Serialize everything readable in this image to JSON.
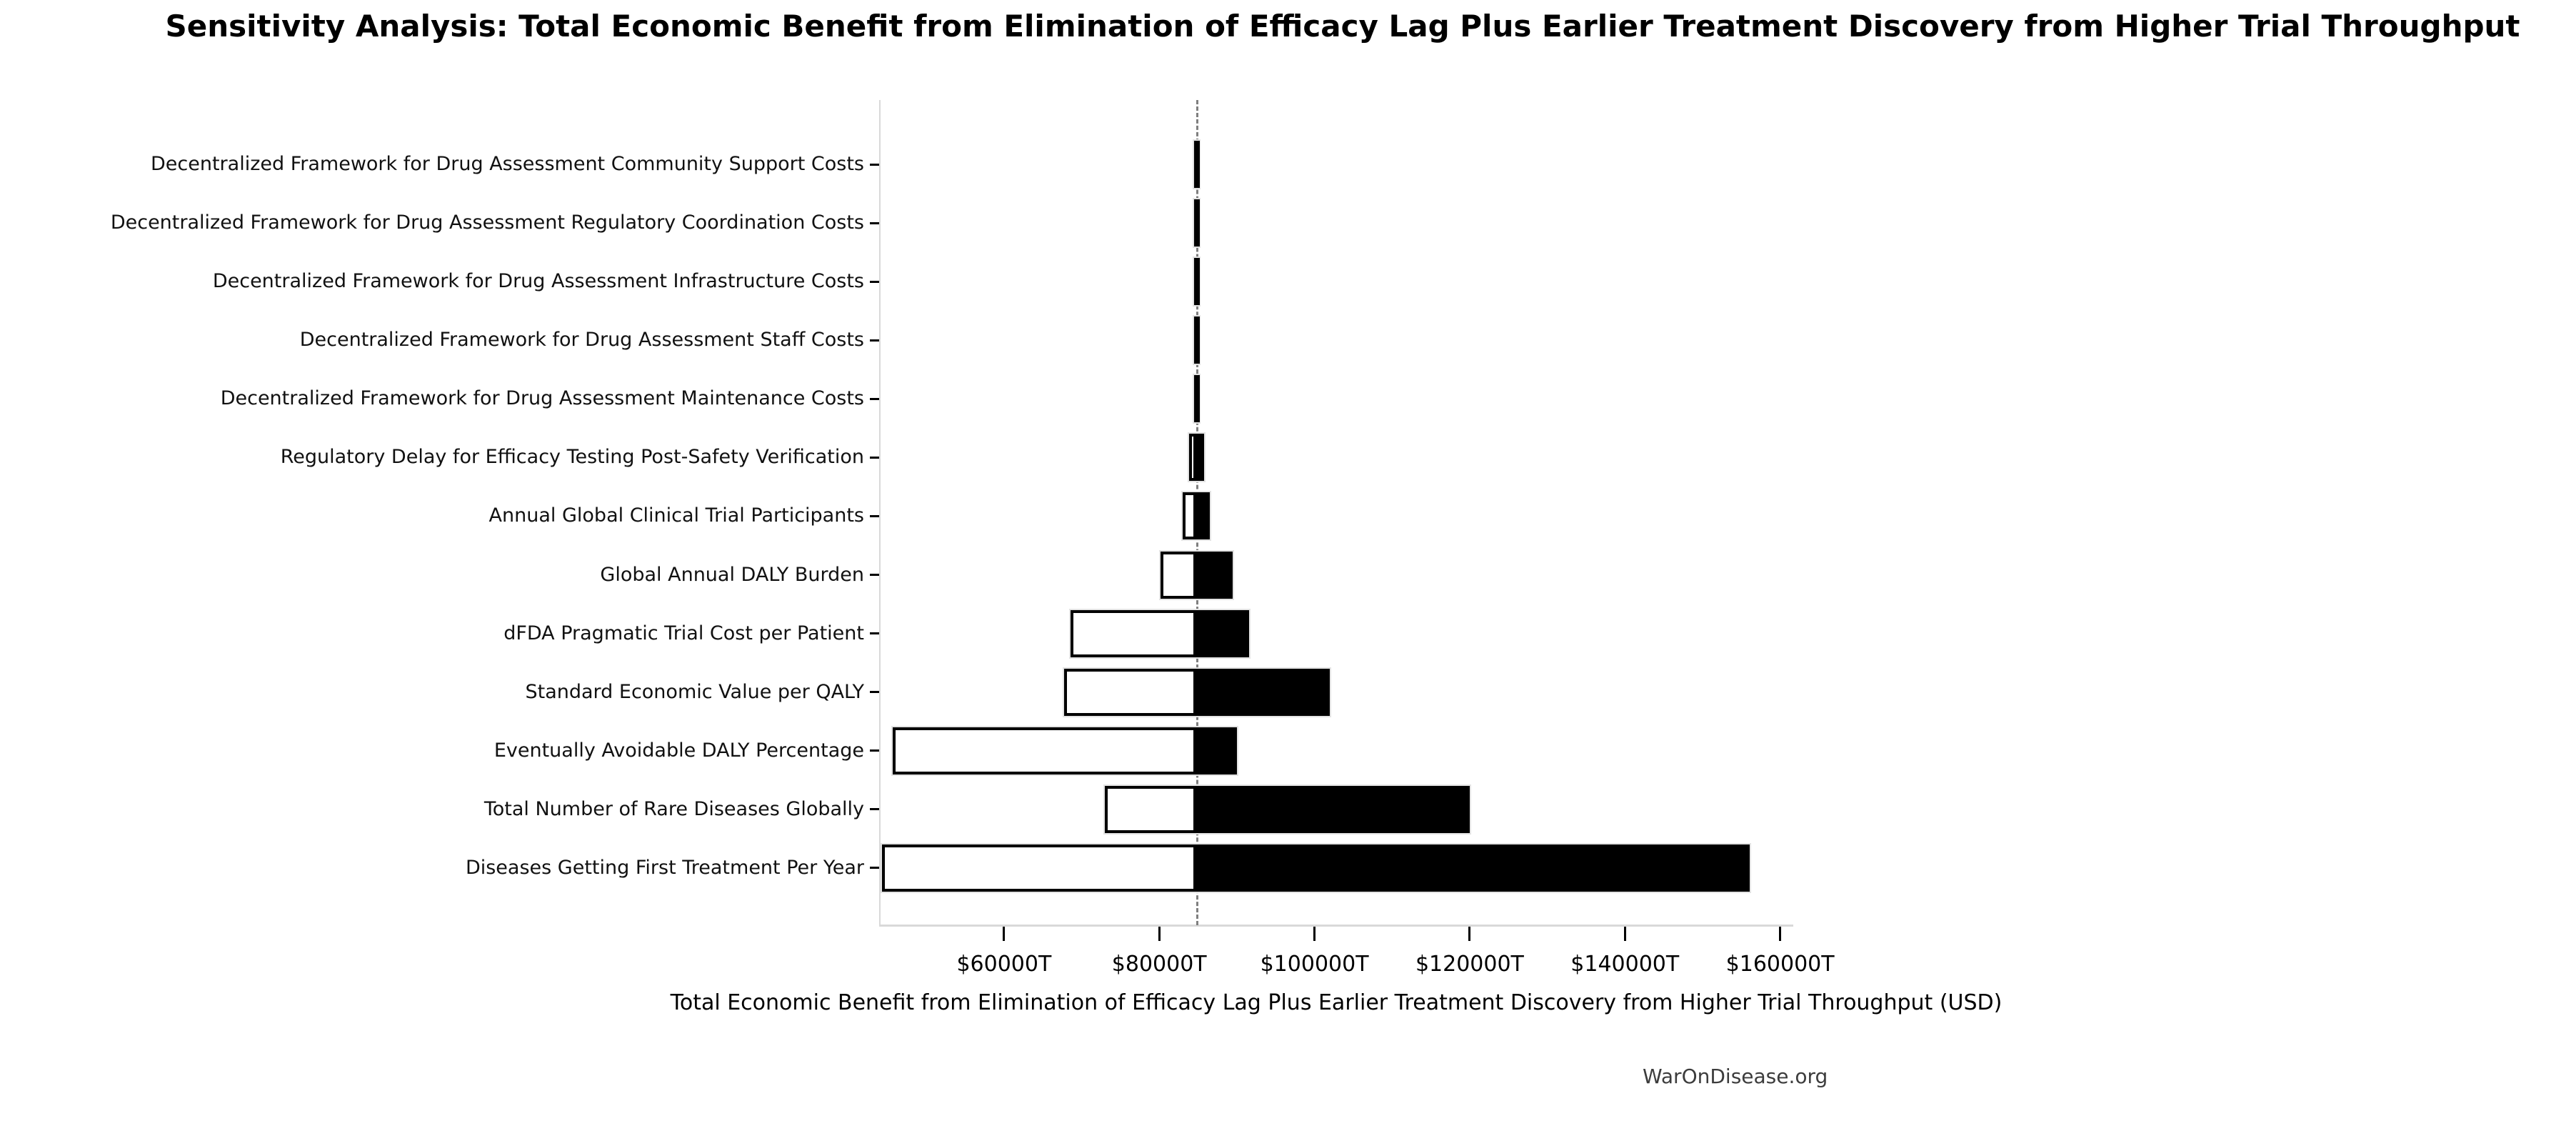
{
  "page": {
    "watermark": "WarOnDisease.org"
  },
  "chart_data": {
    "type": "bar",
    "subtype": "tornado-sensitivity",
    "orientation": "horizontal",
    "title": "Sensitivity Analysis: Total Economic Benefit from Elimination of Efficacy Lag Plus Earlier Treatment Discovery from Higher Trial Throughput",
    "xlabel": "Total Economic Benefit from Elimination of Efficacy Lag Plus Earlier Treatment Discovery from Higher Trial Throughput (USD)",
    "ylabel": "",
    "legend": null,
    "grid": false,
    "xlim": [
      44000,
      161600
    ],
    "baseline_value": 84800,
    "x_ticks": [
      {
        "value": 60000,
        "label": "$60000T"
      },
      {
        "value": 80000,
        "label": "$80000T"
      },
      {
        "value": 100000,
        "label": "$100000T"
      },
      {
        "value": 120000,
        "label": "$120000T"
      },
      {
        "value": 140000,
        "label": "$140000T"
      },
      {
        "value": 160000,
        "label": "$160000T"
      }
    ],
    "rows": [
      {
        "label": "Decentralized Framework for Drug Assessment Community Support Costs",
        "low": 84500,
        "high": 85100
      },
      {
        "label": "Decentralized Framework for Drug Assessment Regulatory Coordination Costs",
        "low": 84500,
        "high": 85100
      },
      {
        "label": "Decentralized Framework for Drug Assessment Infrastructure Costs",
        "low": 84500,
        "high": 85100
      },
      {
        "label": "Decentralized Framework for Drug Assessment Staff Costs",
        "low": 84500,
        "high": 85100
      },
      {
        "label": "Decentralized Framework for Drug Assessment Maintenance Costs",
        "low": 84500,
        "high": 85100
      },
      {
        "label": "Regulatory Delay for Efficacy Testing Post-Safety Verification",
        "low": 83800,
        "high": 85800
      },
      {
        "label": "Annual Global Clinical Trial Participants",
        "low": 83000,
        "high": 86500
      },
      {
        "label": "Global Annual DALY Burden",
        "low": 80200,
        "high": 89500
      },
      {
        "label": "dFDA Pragmatic Trial Cost per Patient",
        "low": 68600,
        "high": 91600
      },
      {
        "label": "Standard Economic Value per QALY",
        "low": 67700,
        "high": 102000
      },
      {
        "label": "Eventually Avoidable DALY Percentage",
        "low": 45700,
        "high": 90000
      },
      {
        "label": "Total Number of Rare Diseases Globally",
        "low": 73000,
        "high": 120000
      },
      {
        "label": "Diseases Getting First Treatment Per Year",
        "low": 44300,
        "high": 156100
      }
    ],
    "colors": {
      "low_side_fill": "#ffffff",
      "low_side_edge": "#000000",
      "high_side_fill": "#000000",
      "baseline_line": "#7f7f7f",
      "axis_line": "#d9d9d9"
    }
  }
}
